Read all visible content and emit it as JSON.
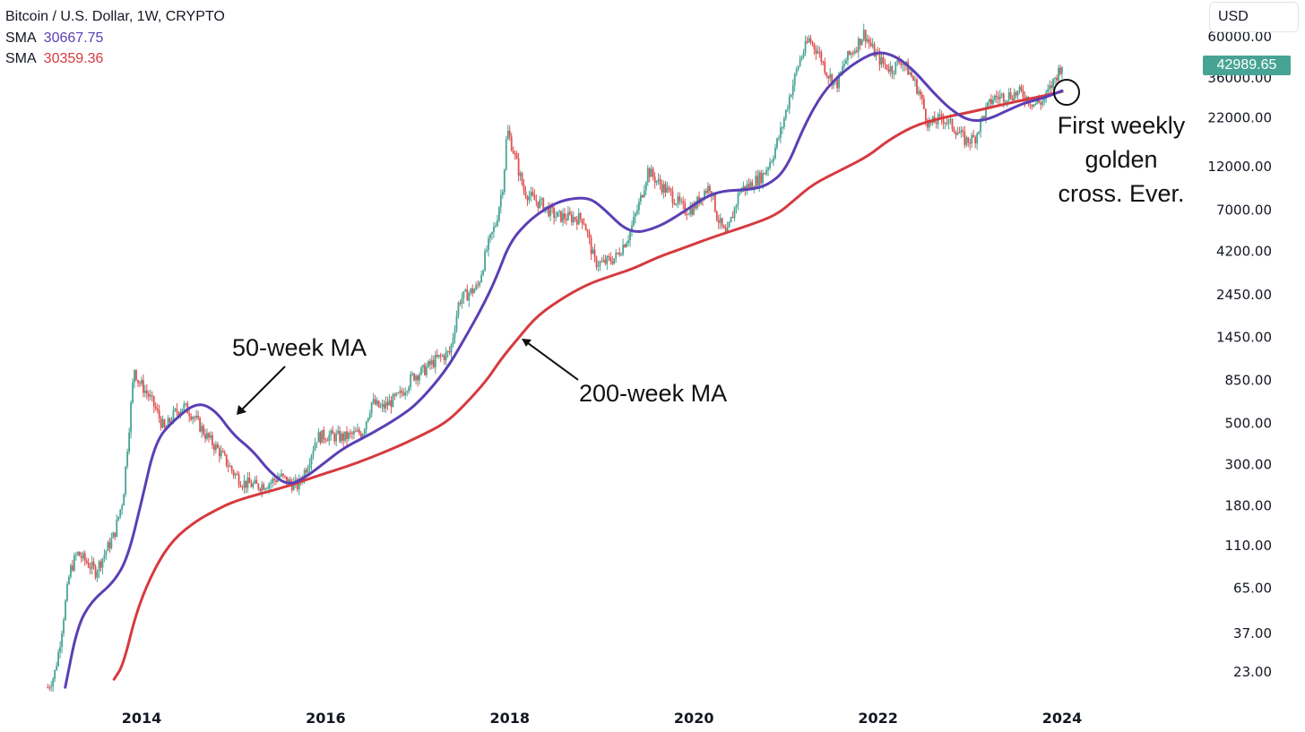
{
  "header": {
    "symbol": "Bitcoin / U.S. Dollar, 1W, CRYPTO",
    "currency": "USD",
    "last_price": "42989.65"
  },
  "indicators": [
    {
      "label": "SMA",
      "value": "30667.75",
      "color": "#5b3fb5"
    },
    {
      "label": "SMA",
      "value": "30359.36",
      "color": "#d63a3f"
    }
  ],
  "annotations": {
    "ma50": "50-week MA",
    "ma200": "200-week MA",
    "cross_lines": [
      "First weekly",
      "golden",
      "cross. Ever."
    ]
  },
  "colors": {
    "up": "#47a494",
    "down": "#e0504f",
    "ma50": "#5b3fb5",
    "ma200": "#d63a3f"
  },
  "chart_data": {
    "type": "line",
    "scale": "log",
    "x_ticks": [
      "2014",
      "2016",
      "2018",
      "2020",
      "2022",
      "2024"
    ],
    "y_ticks": [
      "60000.00",
      "36000.00",
      "22000.00",
      "12000.00",
      "7000.00",
      "4200.00",
      "2450.00",
      "1450.00",
      "850.00",
      "500.00",
      "300.00",
      "180.00",
      "110.00",
      "65.00",
      "37.00",
      "23.00"
    ],
    "ylim": [
      18,
      75000
    ],
    "xlim": [
      2012.97,
      2024.6
    ],
    "series": [
      {
        "name": "50-week MA",
        "color": "#5b3fb5",
        "x": [
          2013.17,
          2013.3,
          2013.45,
          2013.7,
          2013.85,
          2014.0,
          2014.15,
          2014.35,
          2014.6,
          2014.8,
          2015.0,
          2015.2,
          2015.4,
          2015.6,
          2015.8,
          2016.0,
          2016.2,
          2016.5,
          2016.8,
          2017.0,
          2017.3,
          2017.5,
          2017.7,
          2017.85,
          2018.0,
          2018.2,
          2018.4,
          2018.6,
          2018.85,
          2019.0,
          2019.3,
          2019.6,
          2019.9,
          2020.1,
          2020.3,
          2020.6,
          2020.8,
          2021.0,
          2021.2,
          2021.4,
          2021.6,
          2021.8,
          2022.0,
          2022.2,
          2022.4,
          2022.6,
          2022.8,
          2023.0,
          2023.2,
          2023.4,
          2023.6,
          2023.8,
          2024.0
        ],
        "values": [
          19,
          40,
          55,
          70,
          95,
          190,
          400,
          520,
          650,
          590,
          430,
          360,
          270,
          230,
          260,
          310,
          370,
          440,
          540,
          640,
          950,
          1400,
          2100,
          3000,
          4700,
          6100,
          7200,
          8000,
          8200,
          7300,
          5200,
          5600,
          6900,
          8100,
          8900,
          9000,
          9500,
          11500,
          20000,
          30000,
          38000,
          45000,
          50000,
          47000,
          39000,
          30000,
          24000,
          21000,
          21500,
          24000,
          26500,
          28000,
          30667.75
        ]
      },
      {
        "name": "200-week MA",
        "color": "#d63a3f",
        "x": [
          2013.7,
          2013.8,
          2013.95,
          2014.15,
          2014.35,
          2014.6,
          2014.8,
          2015.0,
          2015.3,
          2015.6,
          2015.9,
          2016.3,
          2016.7,
          2017.0,
          2017.3,
          2017.5,
          2017.75,
          2017.9,
          2018.1,
          2018.3,
          2018.6,
          2018.85,
          2019.1,
          2019.35,
          2019.6,
          2019.9,
          2020.2,
          2020.6,
          2020.9,
          2021.1,
          2021.3,
          2021.6,
          2021.9,
          2022.1,
          2022.4,
          2022.7,
          2023.0,
          2023.3,
          2023.6,
          2023.8,
          2024.0
        ],
        "values": [
          21,
          25,
          50,
          85,
          120,
          150,
          170,
          190,
          210,
          230,
          260,
          300,
          360,
          420,
          500,
          620,
          850,
          1100,
          1450,
          1900,
          2400,
          2800,
          3100,
          3400,
          3900,
          4400,
          5000,
          5800,
          6600,
          8000,
          9700,
          11500,
          13700,
          16500,
          20000,
          22000,
          23500,
          25500,
          27500,
          28800,
          30359.36
        ]
      },
      {
        "name": "BTC/USD price",
        "color": "#47a494",
        "x": [
          2012.98,
          2013.05,
          2013.1,
          2013.15,
          2013.22,
          2013.3,
          2013.4,
          2013.5,
          2013.6,
          2013.7,
          2013.8,
          2013.85,
          2013.92,
          2013.96,
          2014.0,
          2014.08,
          2014.15,
          2014.25,
          2014.35,
          2014.45,
          2014.55,
          2014.7,
          2014.85,
          2015.0,
          2015.1,
          2015.25,
          2015.4,
          2015.5,
          2015.6,
          2015.7,
          2015.8,
          2015.9,
          2016.0,
          2016.2,
          2016.4,
          2016.5,
          2016.6,
          2016.8,
          2016.95,
          2017.05,
          2017.2,
          2017.35,
          2017.45,
          2017.55,
          2017.65,
          2017.75,
          2017.85,
          2017.93,
          2017.97,
          2018.05,
          2018.15,
          2018.25,
          2018.35,
          2018.5,
          2018.65,
          2018.8,
          2018.92,
          2019.0,
          2019.15,
          2019.3,
          2019.42,
          2019.5,
          2019.6,
          2019.75,
          2019.9,
          2020.0,
          2020.1,
          2020.18,
          2020.25,
          2020.35,
          2020.5,
          2020.6,
          2020.75,
          2020.85,
          2020.95,
          2021.05,
          2021.15,
          2021.25,
          2021.35,
          2021.45,
          2021.55,
          2021.65,
          2021.75,
          2021.85,
          2021.95,
          2022.05,
          2022.15,
          2022.25,
          2022.35,
          2022.45,
          2022.55,
          2022.7,
          2022.85,
          2022.95,
          2023.05,
          2023.15,
          2023.25,
          2023.4,
          2023.55,
          2023.7,
          2023.8,
          2023.9,
          2024.0
        ],
        "values": [
          19,
          22,
          30,
          45,
          80,
          100,
          90,
          80,
          100,
          125,
          200,
          400,
          1000,
          850,
          800,
          700,
          600,
          460,
          560,
          620,
          560,
          430,
          350,
          270,
          240,
          230,
          240,
          260,
          240,
          230,
          300,
          420,
          430,
          420,
          450,
          650,
          600,
          700,
          900,
          950,
          1100,
          1200,
          2300,
          2500,
          2700,
          4300,
          6000,
          10000,
          19000,
          14000,
          9000,
          8000,
          7500,
          6500,
          6400,
          6300,
          3700,
          3600,
          3900,
          5200,
          8000,
          11500,
          10000,
          8500,
          7000,
          7200,
          8700,
          9500,
          6500,
          5000,
          9000,
          9500,
          10800,
          13500,
          19000,
          30000,
          45000,
          58000,
          50000,
          38000,
          33000,
          45000,
          52000,
          63000,
          50000,
          43000,
          40000,
          45000,
          38000,
          30000,
          20000,
          22000,
          19000,
          16500,
          17000,
          23000,
          28000,
          29000,
          30000,
          26000,
          27000,
          34000,
          42989.65
        ]
      }
    ]
  }
}
